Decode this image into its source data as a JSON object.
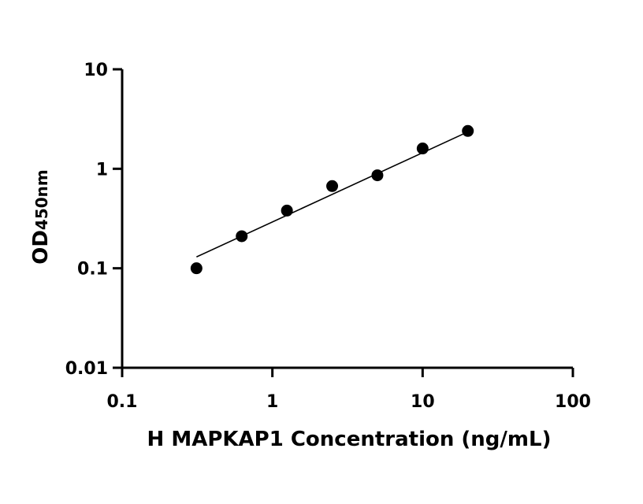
{
  "chart_data": {
    "type": "scatter",
    "x_scale": "log",
    "y_scale": "log",
    "xlim": [
      0.1,
      100
    ],
    "ylim": [
      0.01,
      10
    ],
    "x_ticks": [
      "0.1",
      "1",
      "10",
      "100"
    ],
    "y_ticks": [
      "0.01",
      "0.1",
      "1",
      "10"
    ],
    "xlabel": "H MAPKAP1 Concentration (ng/mL)",
    "ylabel_main": "OD",
    "ylabel_sub": "450nm",
    "grid": false,
    "legend": "none",
    "point_color": "#000000",
    "series": [
      {
        "x": [
          0.3125,
          0.625,
          1.25,
          2.5,
          5,
          10,
          20
        ],
        "y": [
          0.1,
          0.21,
          0.38,
          0.67,
          0.86,
          1.6,
          2.4
        ]
      }
    ],
    "fit_line": {
      "x": [
        0.3125,
        20
      ],
      "y": [
        0.13,
        2.35
      ]
    }
  }
}
